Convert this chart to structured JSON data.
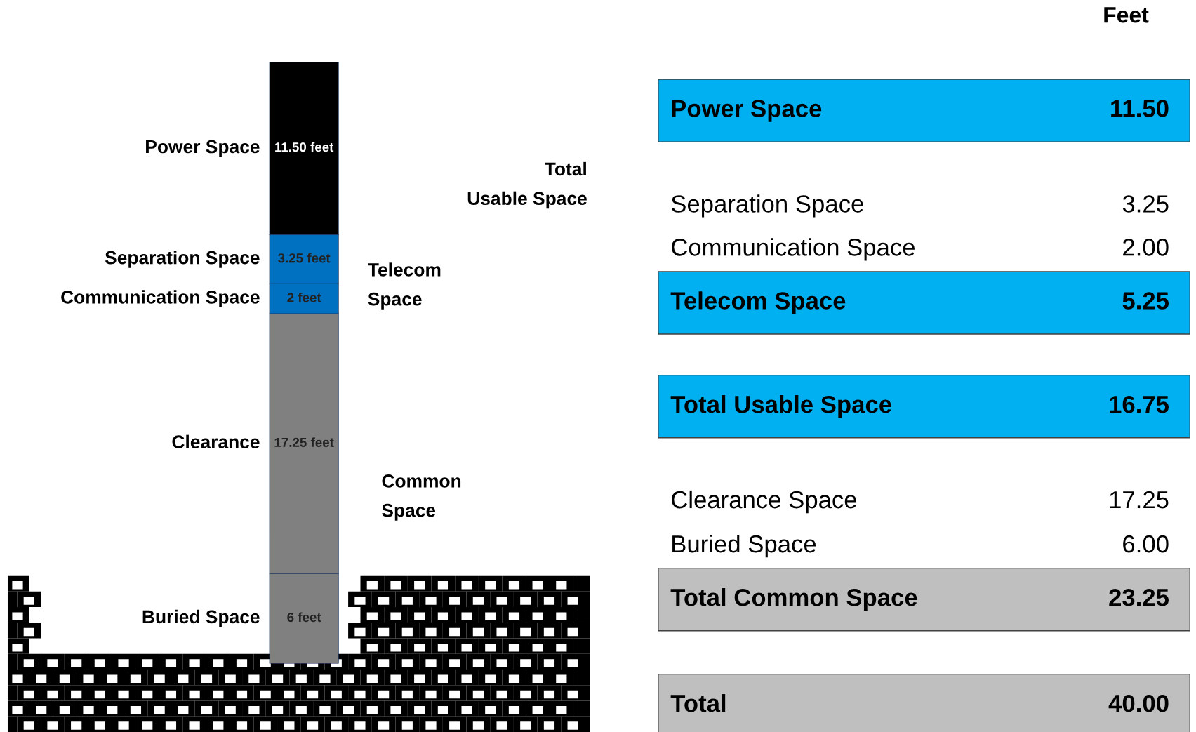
{
  "chart_data": [
    {
      "type": "bar",
      "stacked": true,
      "categories": [
        null
      ],
      "series": [
        {
          "name": "Buried Space",
          "color": "#808080",
          "values": [
            6
          ],
          "value_labels": [
            "6 feet"
          ]
        },
        {
          "name": "Clearance",
          "color": "#808080",
          "values": [
            17.25
          ],
          "value_labels": [
            "17.25 feet"
          ]
        },
        {
          "name": "Communication Space",
          "color": "#0070c0",
          "values": [
            2
          ],
          "value_labels": [
            "2 feet"
          ]
        },
        {
          "name": "Separation Space",
          "color": "#0070c0",
          "values": [
            3.25
          ],
          "value_labels": [
            "3.25 feet"
          ]
        },
        {
          "name": "Power Space",
          "color": "#000000",
          "values": [
            11.5
          ],
          "value_labels": [
            "11.50 feet"
          ]
        }
      ],
      "annotations": [
        "Common\nSpace",
        "Telecom\nSpace",
        "Total\nUsable Space"
      ]
    },
    {
      "type": "other",
      "title": "Feet",
      "categories": [
        "Power Space",
        "Separation Space",
        "Communication Space",
        "Telecom Space",
        "Total Usable Space",
        "Clearance Space",
        "Buried Space",
        "Total Common Space",
        "Total"
      ],
      "value_labels": [
        "11.50",
        "3.25",
        "2.00",
        "5.25",
        "16.75",
        "17.25",
        "6.00",
        "23.25",
        "40.00"
      ],
      "colors": [
        "#00b0f0",
        null,
        null,
        "#00b0f0",
        "#00b0f0",
        null,
        null,
        "#bfbfbf",
        "#bfbfbf"
      ]
    }
  ]
}
